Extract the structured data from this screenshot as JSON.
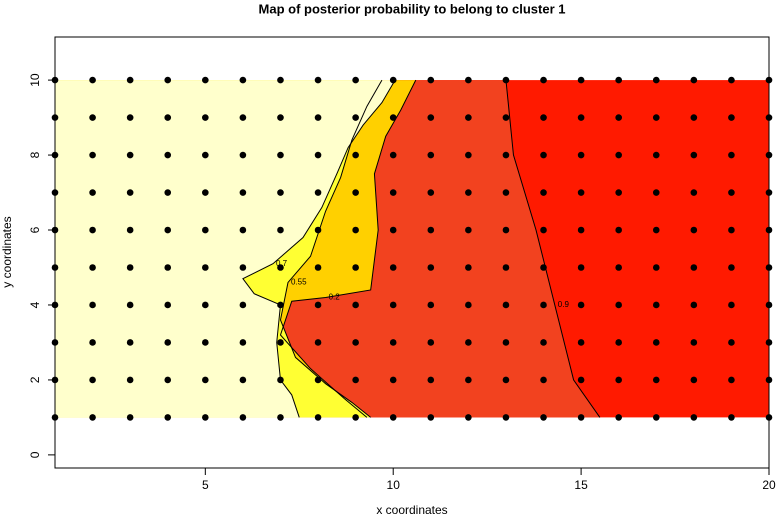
{
  "chart_data": {
    "type": "contour",
    "title": "Map of posterior probability to belong to cluster  1",
    "x_label": "x coordinates",
    "y_label": "y coordinates",
    "xlim": [
      1,
      20
    ],
    "ylim": [
      -0.35,
      11.15
    ],
    "xticks": [
      5,
      10,
      15,
      20
    ],
    "yticks": [
      0,
      2,
      4,
      6,
      8,
      10
    ],
    "background_fill": "#FF1A00",
    "point_color": "#000000",
    "contours": [
      {
        "level": 0.9,
        "color": "#F2421F",
        "x": [
          13,
          13.2,
          13.8,
          14.3,
          14.8,
          15.5
        ],
        "y": [
          10,
          8,
          6,
          4,
          2,
          1
        ]
      },
      {
        "level": 0.2,
        "color": "#FFD000",
        "x": [
          10.6,
          10.2,
          9.8,
          9.5,
          9.6,
          9.4,
          8.2,
          7.3,
          7.0,
          7.8,
          8.7,
          9.3
        ],
        "y": [
          10,
          9.2,
          8.5,
          7.5,
          6,
          4.4,
          4.2,
          4.1,
          3.2,
          2.3,
          1.5,
          1.0
        ]
      },
      {
        "level": 0.55,
        "color": "#FFFF33",
        "x": [
          9.7,
          9.3,
          8.9,
          8.6,
          8.2,
          7.8,
          7.2,
          7.0,
          7.4,
          8.2,
          8.9,
          9.4
        ],
        "y": [
          10,
          9.3,
          8.4,
          7.4,
          6.5,
          5.3,
          4.6,
          3.6,
          2.6,
          1.9,
          1.4,
          1.0
        ]
      },
      {
        "level": 0.7,
        "color": "#FFFFCC",
        "x": [
          10.05,
          9.7,
          9.2,
          8.8,
          8.5,
          8.1,
          7.6,
          6.8,
          6.0,
          6.3,
          7.0,
          6.9,
          7.0,
          7.3,
          7.5
        ],
        "y": [
          10,
          9.4,
          8.8,
          8.2,
          7.5,
          6.6,
          5.8,
          5.1,
          4.7,
          4.3,
          4.0,
          3.0,
          2.0,
          1.6,
          1.0
        ]
      }
    ],
    "grid_points": {
      "x": [
        1,
        2,
        3,
        4,
        5,
        6,
        7,
        8,
        9,
        10,
        11,
        12,
        13,
        14,
        15,
        16,
        17,
        18,
        19,
        20
      ],
      "y": [
        1,
        2,
        3,
        4,
        5,
        6,
        7,
        8,
        9,
        10
      ]
    }
  }
}
